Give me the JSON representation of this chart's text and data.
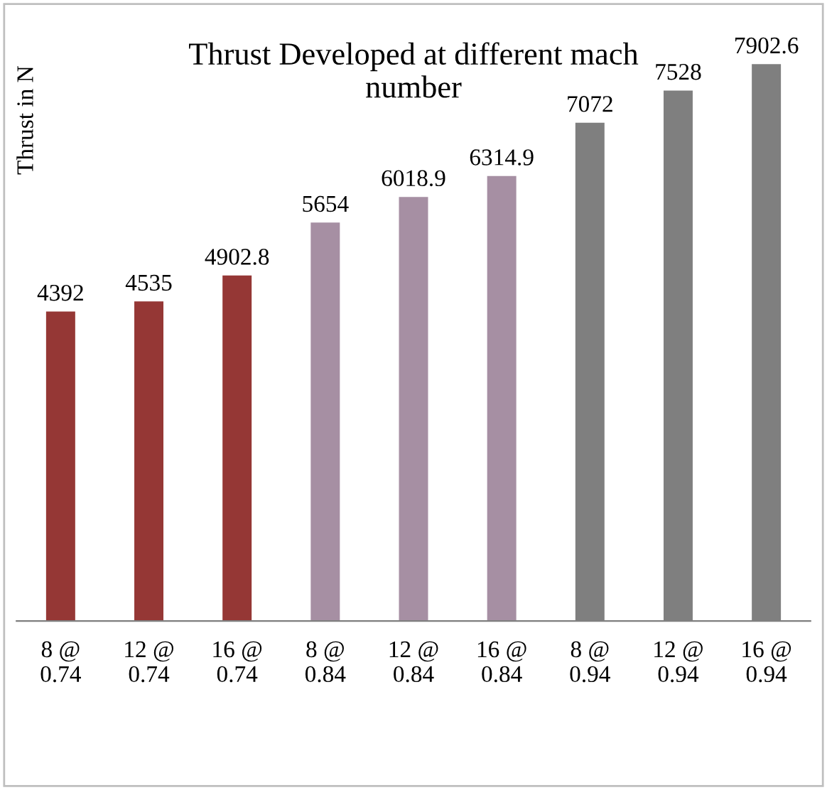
{
  "chart_data": {
    "type": "bar",
    "title": "Thrust Developed at different mach\nnumber",
    "ylabel": "Thrust in N",
    "categories": [
      "8 @\n0.74",
      "12 @\n0.74",
      "16 @\n0.74",
      "8 @\n0.84",
      "12 @\n0.84",
      "16 @\n0.84",
      "8 @\n0.94",
      "12 @\n0.94",
      "16 @\n0.94"
    ],
    "values": [
      4392,
      4535,
      4902.8,
      5654,
      6018.9,
      6314.9,
      7072,
      7528,
      7902.6
    ],
    "colors": [
      "#953735",
      "#953735",
      "#953735",
      "#a68fa3",
      "#a68fa3",
      "#a68fa3",
      "#7f7f7f",
      "#7f7f7f",
      "#7f7f7f"
    ],
    "data_labels": true,
    "grid": false,
    "legend": false
  }
}
